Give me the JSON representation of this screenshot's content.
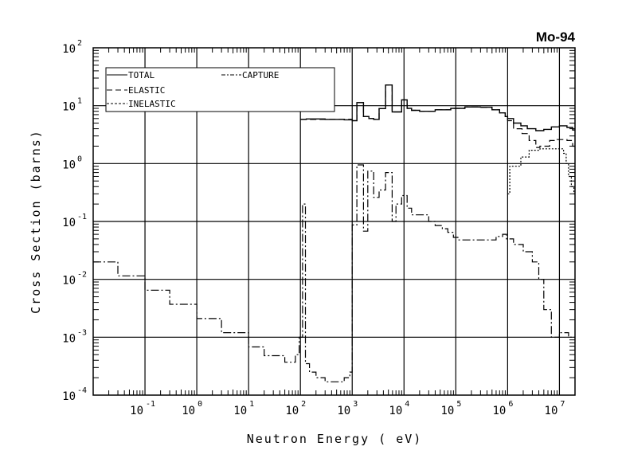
{
  "chart_data": {
    "type": "line",
    "title": "Mo-94",
    "xlabel": "Neutron Energy ( eV)",
    "ylabel": "Cross Section (barns)",
    "xscale": "log",
    "yscale": "log",
    "xlim": [
      0.01,
      20000000
    ],
    "ylim": [
      0.0001,
      100
    ],
    "grid": true,
    "legend_position": "top-left",
    "x_ticks": [
      {
        "base": "10",
        "exp": "-1",
        "value": 0.1
      },
      {
        "base": "10",
        "exp": "0",
        "value": 1
      },
      {
        "base": "10",
        "exp": "1",
        "value": 10
      },
      {
        "base": "10",
        "exp": "2",
        "value": 100
      },
      {
        "base": "10",
        "exp": "3",
        "value": 1000
      },
      {
        "base": "10",
        "exp": "4",
        "value": 10000
      },
      {
        "base": "10",
        "exp": "5",
        "value": 100000
      },
      {
        "base": "10",
        "exp": "6",
        "value": 1000000
      },
      {
        "base": "10",
        "exp": "7",
        "value": 10000000
      }
    ],
    "y_ticks": [
      {
        "base": "10",
        "exp": "2",
        "value": 100
      },
      {
        "base": "10",
        "exp": "1",
        "value": 10
      },
      {
        "base": "10",
        "exp": "0",
        "value": 1
      },
      {
        "base": "10",
        "exp": "-1",
        "value": 0.1
      },
      {
        "base": "10",
        "exp": "-2",
        "value": 0.01
      },
      {
        "base": "10",
        "exp": "-3",
        "value": 0.001
      },
      {
        "base": "10",
        "exp": "-4",
        "value": 0.0001
      }
    ],
    "series": [
      {
        "name": "TOTAL",
        "style": "solid",
        "points": [
          [
            100,
            5.8
          ],
          [
            130,
            5.9
          ],
          [
            300,
            5.8
          ],
          [
            700,
            5.7
          ],
          [
            1000,
            5.5
          ],
          [
            1230,
            11.3
          ],
          [
            1650,
            6.5
          ],
          [
            2100,
            6.0
          ],
          [
            2600,
            5.8
          ],
          [
            3300,
            8.9
          ],
          [
            4400,
            22.8
          ],
          [
            5900,
            7.8
          ],
          [
            9000,
            12.6
          ],
          [
            11500,
            9.0
          ],
          [
            14000,
            8.3
          ],
          [
            20000,
            8.0
          ],
          [
            40000,
            8.5
          ],
          [
            80000,
            9.0
          ],
          [
            150000,
            9.5
          ],
          [
            300000,
            9.4
          ],
          [
            500000,
            8.5
          ],
          [
            700000,
            7.5
          ],
          [
            900000,
            6.5
          ],
          [
            1000000,
            6.0
          ],
          [
            1300000,
            5.0
          ],
          [
            1800000,
            4.5
          ],
          [
            2400000,
            4.0
          ],
          [
            3500000,
            3.7
          ],
          [
            5000000,
            3.9
          ],
          [
            7000000,
            4.3
          ],
          [
            10000000,
            4.5
          ],
          [
            14000000,
            4.2
          ],
          [
            18000000,
            3.8
          ],
          [
            20000000,
            3.8
          ]
        ]
      },
      {
        "name": "ELASTIC",
        "style": "dashed",
        "points": [
          [
            100,
            5.8
          ],
          [
            1000,
            5.5
          ],
          [
            1230,
            11.3
          ],
          [
            1650,
            6.5
          ],
          [
            2100,
            6.0
          ],
          [
            2600,
            5.8
          ],
          [
            3300,
            8.9
          ],
          [
            4400,
            22.8
          ],
          [
            5900,
            7.8
          ],
          [
            9000,
            12.6
          ],
          [
            11500,
            9.0
          ],
          [
            14000,
            8.3
          ],
          [
            20000,
            8.0
          ],
          [
            40000,
            8.5
          ],
          [
            80000,
            9.0
          ],
          [
            150000,
            9.5
          ],
          [
            300000,
            9.4
          ],
          [
            500000,
            8.5
          ],
          [
            700000,
            7.5
          ],
          [
            900000,
            6.5
          ],
          [
            1000000,
            5.5
          ],
          [
            1300000,
            4.0
          ],
          [
            1900000,
            3.3
          ],
          [
            2600000,
            2.5
          ],
          [
            3500000,
            1.9
          ],
          [
            4200000,
            2.0
          ],
          [
            6500000,
            2.5
          ],
          [
            9000000,
            2.6
          ],
          [
            14000000,
            2.5
          ],
          [
            18000000,
            2.0
          ],
          [
            20000000,
            2.0
          ]
        ]
      },
      {
        "name": "INELASTIC",
        "style": "dotted",
        "points": [
          [
            1000000,
            0.3
          ],
          [
            1100000,
            0.9
          ],
          [
            1800000,
            1.3
          ],
          [
            2600000,
            1.7
          ],
          [
            4200000,
            1.8
          ],
          [
            10000000,
            1.8
          ],
          [
            12000000,
            1.5
          ],
          [
            13500000,
            1.0
          ],
          [
            15000000,
            0.6
          ],
          [
            17000000,
            0.4
          ],
          [
            19000000,
            0.3
          ],
          [
            20000000,
            0.3
          ]
        ]
      },
      {
        "name": "CAPTURE",
        "style": "dashdot",
        "points": [
          [
            0.01,
            0.02
          ],
          [
            0.03,
            0.0115
          ],
          [
            0.1,
            0.0065
          ],
          [
            0.3,
            0.0037
          ],
          [
            1,
            0.0021
          ],
          [
            3,
            0.0012
          ],
          [
            10,
            0.00068
          ],
          [
            20,
            0.00048
          ],
          [
            50,
            0.00037
          ],
          [
            80,
            0.0005
          ],
          [
            95,
            0.001
          ],
          [
            110,
            0.2
          ],
          [
            125,
            0.00035
          ],
          [
            150,
            0.00025
          ],
          [
            200,
            0.0002
          ],
          [
            300,
            0.00017
          ],
          [
            500,
            0.00017
          ],
          [
            700,
            0.0002
          ],
          [
            900,
            0.00025
          ],
          [
            1000,
            0.087
          ],
          [
            1230,
            0.95
          ],
          [
            1650,
            0.068
          ],
          [
            2000,
            0.74
          ],
          [
            2600,
            0.26
          ],
          [
            3300,
            0.35
          ],
          [
            4400,
            0.7
          ],
          [
            5900,
            0.1
          ],
          [
            7000,
            0.2
          ],
          [
            9000,
            0.28
          ],
          [
            11500,
            0.17
          ],
          [
            14000,
            0.13
          ],
          [
            20000,
            0.13
          ],
          [
            30000,
            0.1
          ],
          [
            40000,
            0.085
          ],
          [
            55000,
            0.075
          ],
          [
            70000,
            0.065
          ],
          [
            90000,
            0.053
          ],
          [
            110000,
            0.048
          ],
          [
            500000,
            0.048
          ],
          [
            600000,
            0.055
          ],
          [
            800000,
            0.06
          ],
          [
            950000,
            0.05
          ],
          [
            1300000,
            0.04
          ],
          [
            2000000,
            0.03
          ],
          [
            3000000,
            0.02
          ],
          [
            4000000,
            0.01
          ],
          [
            5000000,
            0.003
          ],
          [
            7000000,
            0.001
          ],
          [
            10000000,
            0.0012
          ],
          [
            15000000,
            0.001
          ],
          [
            20000000,
            0.001
          ]
        ]
      }
    ]
  }
}
